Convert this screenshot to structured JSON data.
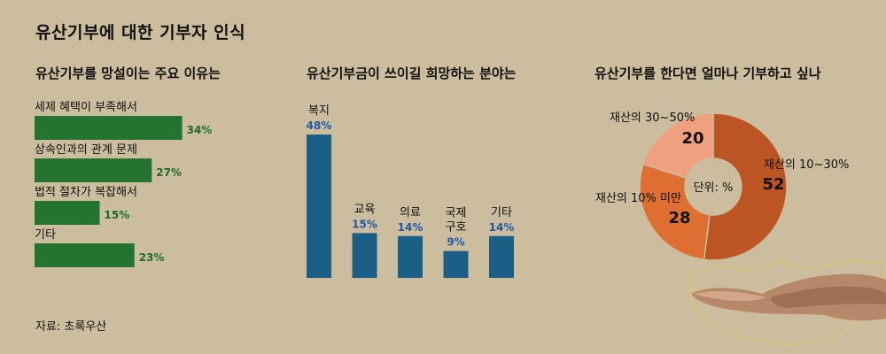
{
  "title": "유산기부에 대한 기부자 인식",
  "source": "자료: 초록우산",
  "colors": {
    "background": "#cbbd9e",
    "bar_green": "#24742f",
    "green_label": "#1f6b2a",
    "bar_blue": "#1c5f86",
    "blue_label": "#1f5aa6",
    "donut": [
      "#bc5423",
      "#df6e32",
      "#eea07f"
    ]
  },
  "chart_data": [
    {
      "type": "bar",
      "orientation": "horizontal",
      "title": "유산기부를 망설이는 주요 이유는",
      "categories": [
        "세제 혜택이 부족해서",
        "상속인과의 관계 문제",
        "법적 절차가 복잡해서",
        "기타"
      ],
      "values": [
        34,
        27,
        15,
        23
      ],
      "value_labels": [
        "34%",
        "27%",
        "15%",
        "23%"
      ],
      "unit": "%"
    },
    {
      "type": "bar",
      "orientation": "vertical",
      "title": "유산기부금이 쓰이길 희망하는 분야는",
      "categories": [
        "복지",
        "교육",
        "의료",
        "국제 구호",
        "기타"
      ],
      "category_lines": [
        [
          "복지"
        ],
        [
          "교육"
        ],
        [
          "의료"
        ],
        [
          "국제",
          "구호"
        ],
        [
          "기타"
        ]
      ],
      "values": [
        48,
        15,
        14,
        9,
        14
      ],
      "value_labels": [
        "48%",
        "15%",
        "14%",
        "9%",
        "14%"
      ],
      "unit": "%"
    },
    {
      "type": "pie",
      "donut": true,
      "title": "유산기부를 한다면 얼마나 기부하고 싶나",
      "center_label": "단위: %",
      "slices": [
        {
          "label": "재산의 10~30%",
          "value": 52
        },
        {
          "label": "재산의 10% 미만",
          "value": 28
        },
        {
          "label": "재산의 30~50%",
          "value": 20
        }
      ]
    }
  ]
}
